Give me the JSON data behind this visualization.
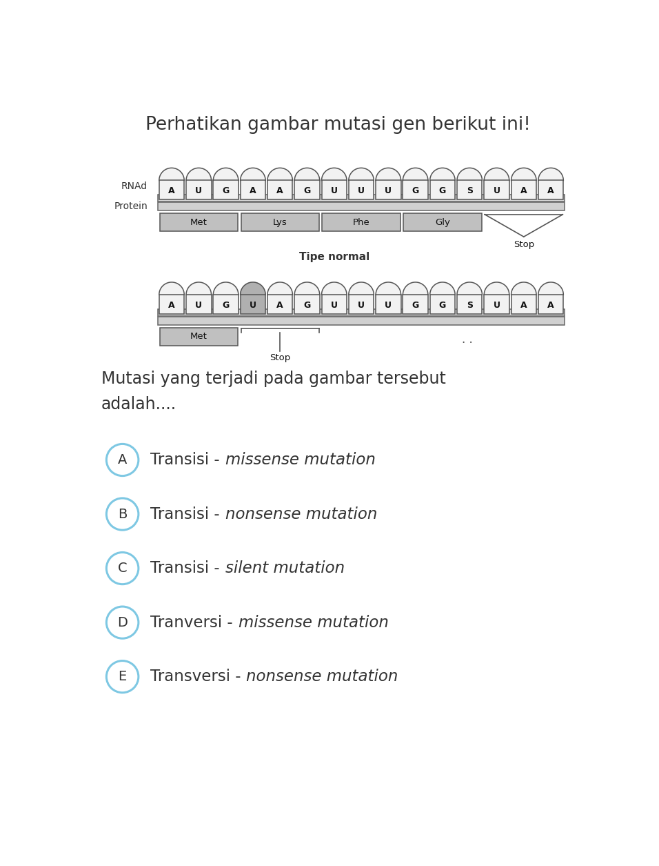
{
  "title": "Perhatikan gambar mutasi gen berikut ini!",
  "title_fontsize": 19,
  "background_color": "#ffffff",
  "normal_sequence": [
    "A",
    "U",
    "G",
    "A",
    "A",
    "G",
    "U",
    "U",
    "U",
    "G",
    "G",
    "S",
    "U",
    "A",
    "A"
  ],
  "mutant_sequence": [
    "A",
    "U",
    "G",
    "U",
    "A",
    "G",
    "U",
    "U",
    "U",
    "G",
    "G",
    "S",
    "U",
    "A",
    "A"
  ],
  "normal_proteins": [
    "Met",
    "Lys",
    "Phe",
    "Gly"
  ],
  "normal_stop": "Stop",
  "mutant_protein": "Met",
  "mutant_stop": "Stop",
  "rnad_label": "RNAd",
  "protein_label": "Protein",
  "tipe_normal_label": "Tipe normal",
  "question_line1": "Mutasi yang terjadi pada gambar tersebut",
  "question_line2": "adalah....",
  "options": [
    {
      "letter": "A",
      "text": "Transisi - ",
      "italic": "missense mutation"
    },
    {
      "letter": "B",
      "text": "Transisi - ",
      "italic": "nonsense mutation"
    },
    {
      "letter": "C",
      "text": "Transisi - ",
      "italic": "silent mutation"
    },
    {
      "letter": "D",
      "text": "Tranversi - ",
      "italic": "missense mutation"
    },
    {
      "letter": "E",
      "text": "Transversi - ",
      "italic": "nonsense mutation"
    }
  ],
  "circle_color": "#7ec8e3",
  "text_color": "#333333",
  "mutant_highlight_idx": 3,
  "protein_box_color": "#c0c0c0",
  "strip_color": "#d8d8d8",
  "nuc_body_color": "#f2f2f2",
  "nuc_highlight_color": "#b0b0b0",
  "nuc_edge_color": "#555555"
}
